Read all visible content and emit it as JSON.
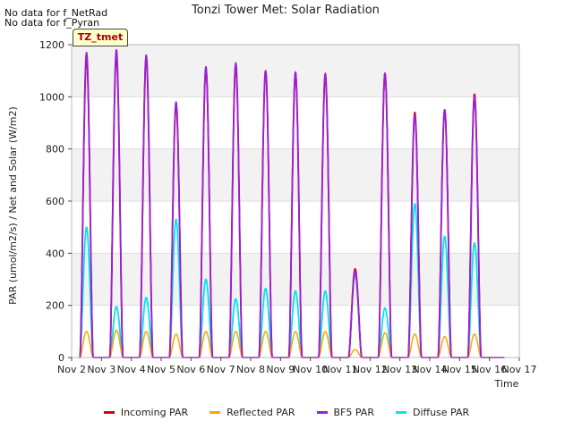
{
  "chart_data": {
    "type": "line",
    "title": "Tonzi Tower Met: Solar Radiation",
    "xlabel": "Time",
    "ylabel": "PAR (umol/m2/s) / Net and Solar (W/m2)",
    "xlim": [
      2,
      17
    ],
    "ylim": [
      0,
      1200
    ],
    "x_ticks": [
      {
        "value": 2,
        "label": "Nov 2"
      },
      {
        "value": 3,
        "label": "Nov 3"
      },
      {
        "value": 4,
        "label": "Nov 4"
      },
      {
        "value": 5,
        "label": "Nov 5"
      },
      {
        "value": 6,
        "label": "Nov 6"
      },
      {
        "value": 7,
        "label": "Nov 7"
      },
      {
        "value": 8,
        "label": "Nov 8"
      },
      {
        "value": 9,
        "label": "Nov 9"
      },
      {
        "value": 10,
        "label": "Nov 10"
      },
      {
        "value": 11,
        "label": "Nov 11"
      },
      {
        "value": 12,
        "label": "Nov 12"
      },
      {
        "value": 13,
        "label": "Nov 13"
      },
      {
        "value": 14,
        "label": "Nov 14"
      },
      {
        "value": 15,
        "label": "Nov 15"
      },
      {
        "value": 16,
        "label": "Nov 16"
      },
      {
        "value": 17,
        "label": "Nov 17"
      }
    ],
    "y_ticks": [
      0,
      200,
      400,
      600,
      800,
      1000,
      1200
    ],
    "day_center_offset": 0.5,
    "day_half_width": 0.22,
    "series": [
      {
        "name": "Incoming PAR",
        "color": "#dd0000",
        "daily_peaks": [
          1150,
          1160,
          1150,
          970,
          1110,
          1120,
          1100,
          1090,
          1080,
          340,
          1090,
          940,
          950,
          1010
        ]
      },
      {
        "name": "Reflected PAR",
        "color": "#ffa500",
        "daily_peaks": [
          100,
          105,
          100,
          90,
          100,
          100,
          100,
          100,
          100,
          30,
          95,
          90,
          80,
          90
        ]
      },
      {
        "name": "BF5 PAR",
        "color": "#9a1fd8",
        "daily_peaks": [
          1170,
          1180,
          1160,
          980,
          1115,
          1130,
          1100,
          1095,
          1090,
          330,
          1090,
          930,
          950,
          1000
        ]
      },
      {
        "name": "Diffuse PAR",
        "color": "#00e5ee",
        "daily_peaks": [
          500,
          195,
          230,
          530,
          300,
          225,
          265,
          255,
          255,
          320,
          190,
          590,
          465,
          440
        ]
      }
    ],
    "legend_position": "bottom-center"
  },
  "notes": {
    "no_data_1": "No data for f_NetRad",
    "no_data_2": "No data for f_Pyran"
  },
  "tag": "TZ_tmet"
}
